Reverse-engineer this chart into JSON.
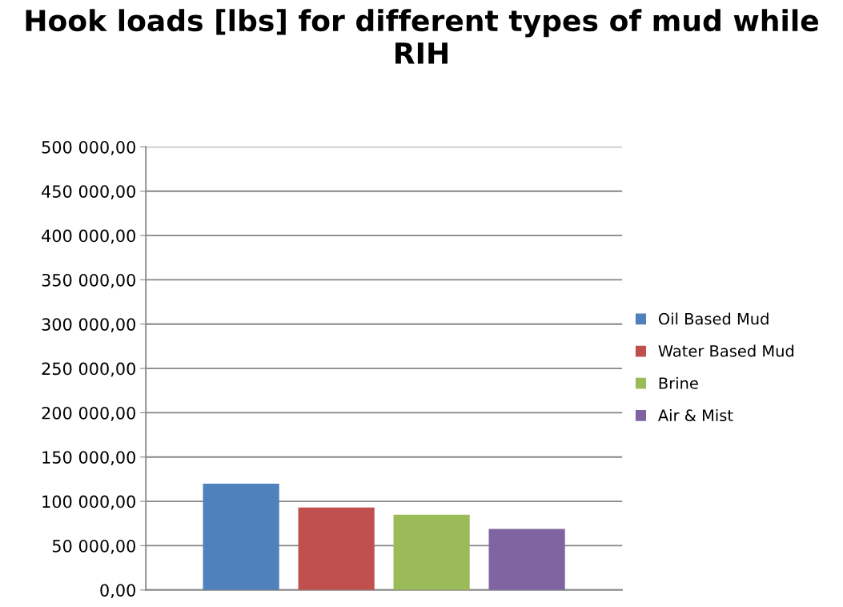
{
  "chart_data": {
    "type": "bar",
    "title": "Hook loads [lbs] for different types of mud while RIH",
    "categories": [
      null
    ],
    "series": [
      {
        "name": "Oil Based Mud",
        "color": "#4f81bd",
        "values": [
          120000
        ]
      },
      {
        "name": "Water Based Mud",
        "color": "#c0504d",
        "values": [
          93000
        ]
      },
      {
        "name": "Brine",
        "color": "#9bbb59",
        "values": [
          85000
        ]
      },
      {
        "name": "Air & Mist",
        "color": "#8064a2",
        "values": [
          69000
        ]
      }
    ],
    "ylim": [
      0,
      500000
    ],
    "yticks": [
      {
        "value": 0,
        "label": "0,00"
      },
      {
        "value": 50000,
        "label": "50 000,00"
      },
      {
        "value": 100000,
        "label": "100 000,00"
      },
      {
        "value": 150000,
        "label": "150 000,00"
      },
      {
        "value": 200000,
        "label": "200 000,00"
      },
      {
        "value": 250000,
        "label": "250 000,00"
      },
      {
        "value": 300000,
        "label": "300 000,00"
      },
      {
        "value": 350000,
        "label": "350 000,00"
      },
      {
        "value": 400000,
        "label": "400 000,00"
      },
      {
        "value": 450000,
        "label": "450 000,00"
      },
      {
        "value": 500000,
        "label": "500 000,00"
      }
    ],
    "grid": "y",
    "legend": "right"
  }
}
